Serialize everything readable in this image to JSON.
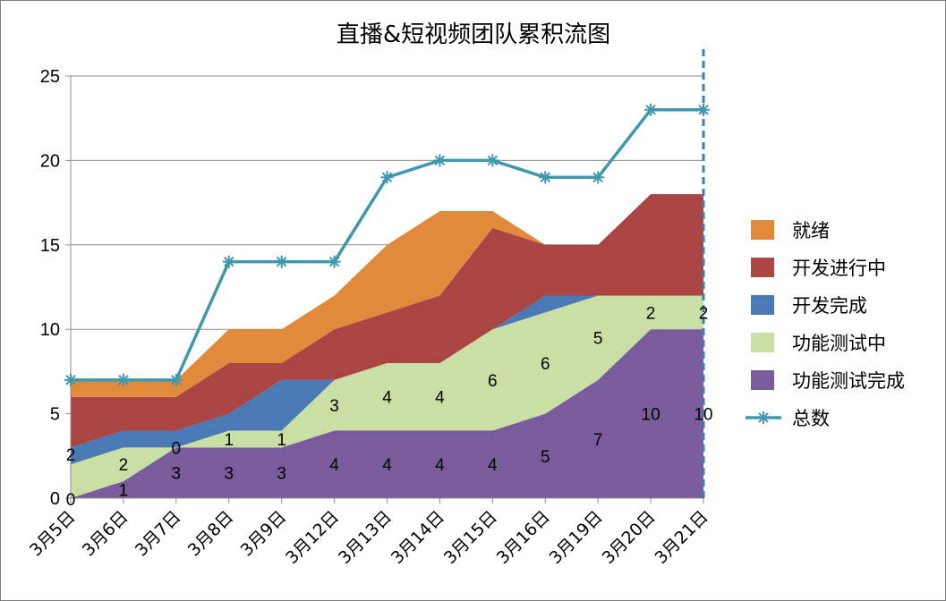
{
  "chart_data": {
    "type": "area",
    "stacked": true,
    "title": "直播&短视频团队累积流图",
    "xlabel": "",
    "ylabel": "",
    "categories": [
      "3月5日",
      "3月6日",
      "3月7日",
      "3月8日",
      "3月9日",
      "3月12日",
      "3月13日",
      "3月14日",
      "3月15日",
      "3月16日",
      "3月19日",
      "3月20日",
      "3月21日"
    ],
    "ylim": [
      0,
      25
    ],
    "yticks": [
      "0",
      "5",
      "10",
      "15",
      "20",
      "25"
    ],
    "grid": true,
    "legend_position": "right",
    "series": [
      {
        "name": "功能测试完成",
        "values": [
          0,
          1,
          3,
          3,
          3,
          4,
          4,
          4,
          4,
          5,
          7,
          10,
          10
        ],
        "color": "#7a5b9b",
        "labels": [
          "0",
          "1",
          "3",
          "3",
          "3",
          "4",
          "4",
          "4",
          "4",
          "5",
          "7",
          "10",
          "10"
        ]
      },
      {
        "name": "功能测试中",
        "values": [
          2,
          2,
          0,
          1,
          1,
          3,
          4,
          4,
          6,
          6,
          5,
          2,
          2
        ],
        "color": "#cadfa3",
        "labels": [
          "2",
          "2",
          "0",
          "1",
          "1",
          "3",
          "4",
          "4",
          "6",
          "6",
          "5",
          "2",
          "2"
        ]
      },
      {
        "name": "开发完成",
        "values": [
          1,
          1,
          1,
          1,
          3,
          0,
          0,
          0,
          0,
          1,
          0,
          0,
          0
        ],
        "color": "#4a7ab5",
        "labels": []
      },
      {
        "name": "开发进行中",
        "values": [
          3,
          2,
          2,
          3,
          1,
          3,
          3,
          4,
          6,
          3,
          3,
          6,
          6
        ],
        "color": "#aa4543",
        "labels": []
      },
      {
        "name": "就绪",
        "values": [
          1,
          1,
          1,
          2,
          2,
          2,
          4,
          5,
          1,
          0,
          0,
          0,
          0
        ],
        "color": "#e18a3c",
        "labels": []
      }
    ],
    "total": {
      "name": "总数",
      "values": [
        7,
        7,
        7,
        14,
        14,
        14,
        19,
        20,
        20,
        19,
        19,
        23,
        23
      ],
      "color": "#3f98ae"
    },
    "legend_order": [
      "就绪",
      "开发进行中",
      "开发完成",
      "功能测试中",
      "功能测试完成",
      "总数"
    ]
  }
}
